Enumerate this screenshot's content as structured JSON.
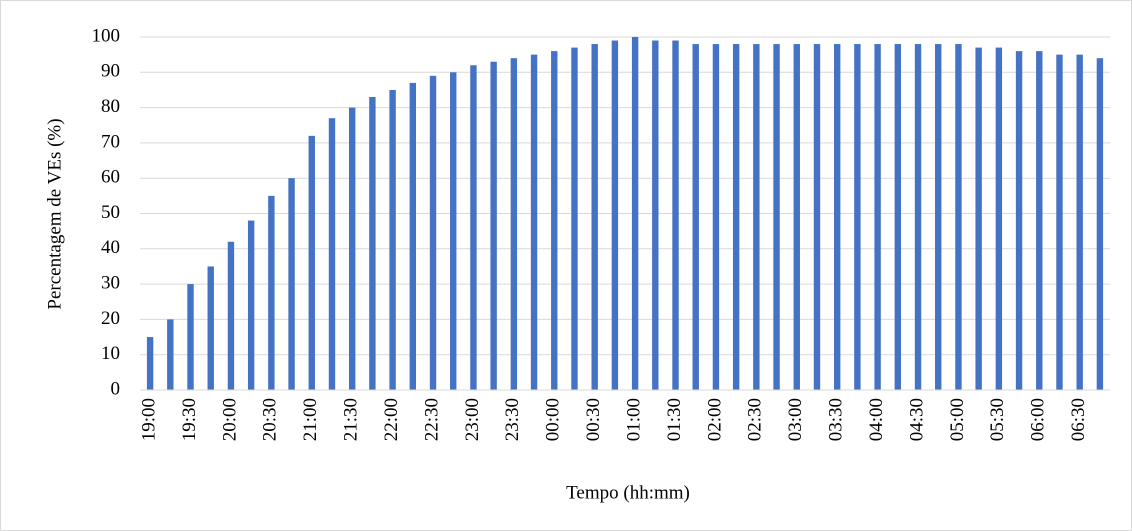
{
  "chart_data": {
    "type": "bar",
    "x_label": "Tempo (hh:mm)",
    "y_label": "Percentagem  de VEs (%)",
    "categories": [
      "19:00",
      null,
      "19:30",
      null,
      "20:00",
      null,
      "20:30",
      null,
      "21:00",
      null,
      "21:30",
      null,
      "22:00",
      null,
      "22:30",
      null,
      "23:00",
      null,
      "23:30",
      null,
      "00:00",
      null,
      "00:30",
      null,
      "01:00",
      null,
      "01:30",
      null,
      "02:00",
      null,
      "02:30",
      null,
      "03:00",
      null,
      "03:30",
      null,
      "04:00",
      null,
      "04:30",
      null,
      "05:00",
      null,
      "05:30",
      null,
      "06:00",
      null,
      "06:30",
      null
    ],
    "values": [
      15,
      20,
      30,
      35,
      42,
      48,
      55,
      60,
      72,
      77,
      80,
      83,
      85,
      87,
      89,
      90,
      92,
      93,
      94,
      95,
      96,
      97,
      98,
      99,
      100,
      99,
      99,
      98,
      98,
      98,
      98,
      98,
      98,
      98,
      98,
      98,
      98,
      98,
      98,
      98,
      98,
      97,
      97,
      96,
      96,
      95,
      95,
      94
    ],
    "color": "#4472c4",
    "ylim": [
      0,
      100
    ],
    "yticks": [
      0,
      10,
      20,
      30,
      40,
      50,
      60,
      70,
      80,
      90,
      100
    ],
    "grid": true
  }
}
